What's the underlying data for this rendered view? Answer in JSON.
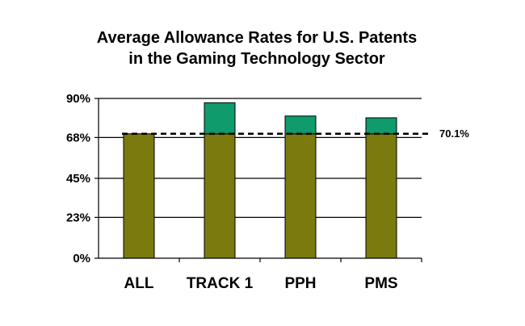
{
  "chart_data": {
    "type": "bar",
    "stacked": true,
    "title_lines": [
      "Average Allowance Rates for U.S. Patents",
      "in the Gaming Technology Sector"
    ],
    "categories": [
      "ALL",
      "TRACK 1",
      "PPH",
      "PMS"
    ],
    "series": [
      {
        "values": [
          70.1,
          70.1,
          70.1,
          70.1
        ],
        "color": "#7a7a0e"
      },
      {
        "values": [
          0,
          17.5,
          10,
          9
        ],
        "color": "#0f9b6b"
      }
    ],
    "ylim": [
      0,
      90
    ],
    "y_ticks": [
      0,
      23,
      45,
      68,
      90
    ],
    "y_tick_labels": [
      "0%",
      "23%",
      "45%",
      "68%",
      "90%"
    ],
    "grid": true,
    "reference_line": {
      "value": 70.1,
      "label": "70.1%",
      "style": "dashed"
    }
  }
}
